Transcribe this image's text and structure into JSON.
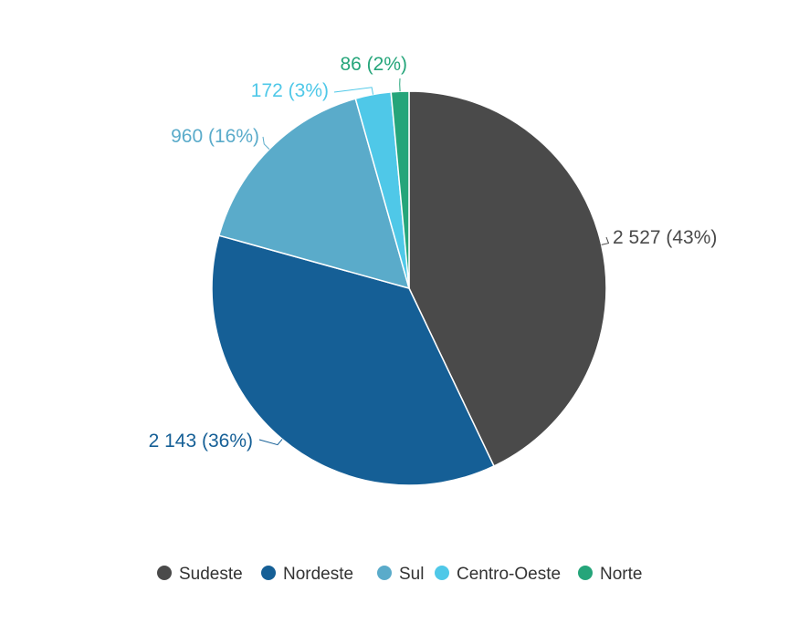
{
  "chart_data": {
    "type": "pie",
    "title": "",
    "start_angle_deg": 0,
    "direction": "clockwise",
    "legend_position": "bottom",
    "slices": [
      {
        "name": "Sudeste",
        "value": 2527,
        "label": "2 527 (43%)",
        "color": "#4a4a4a"
      },
      {
        "name": "Nordeste",
        "value": 2143,
        "label": "2 143 (36%)",
        "color": "#155f96"
      },
      {
        "name": "Sul",
        "value": 960,
        "label": "960 (16%)",
        "color": "#5aabca"
      },
      {
        "name": "Centro-Oeste",
        "value": 172,
        "label": "172 (3%)",
        "color": "#4fc8e8"
      },
      {
        "name": "Norte",
        "value": 86,
        "label": "86 (2%)",
        "color": "#25a57a"
      }
    ]
  }
}
